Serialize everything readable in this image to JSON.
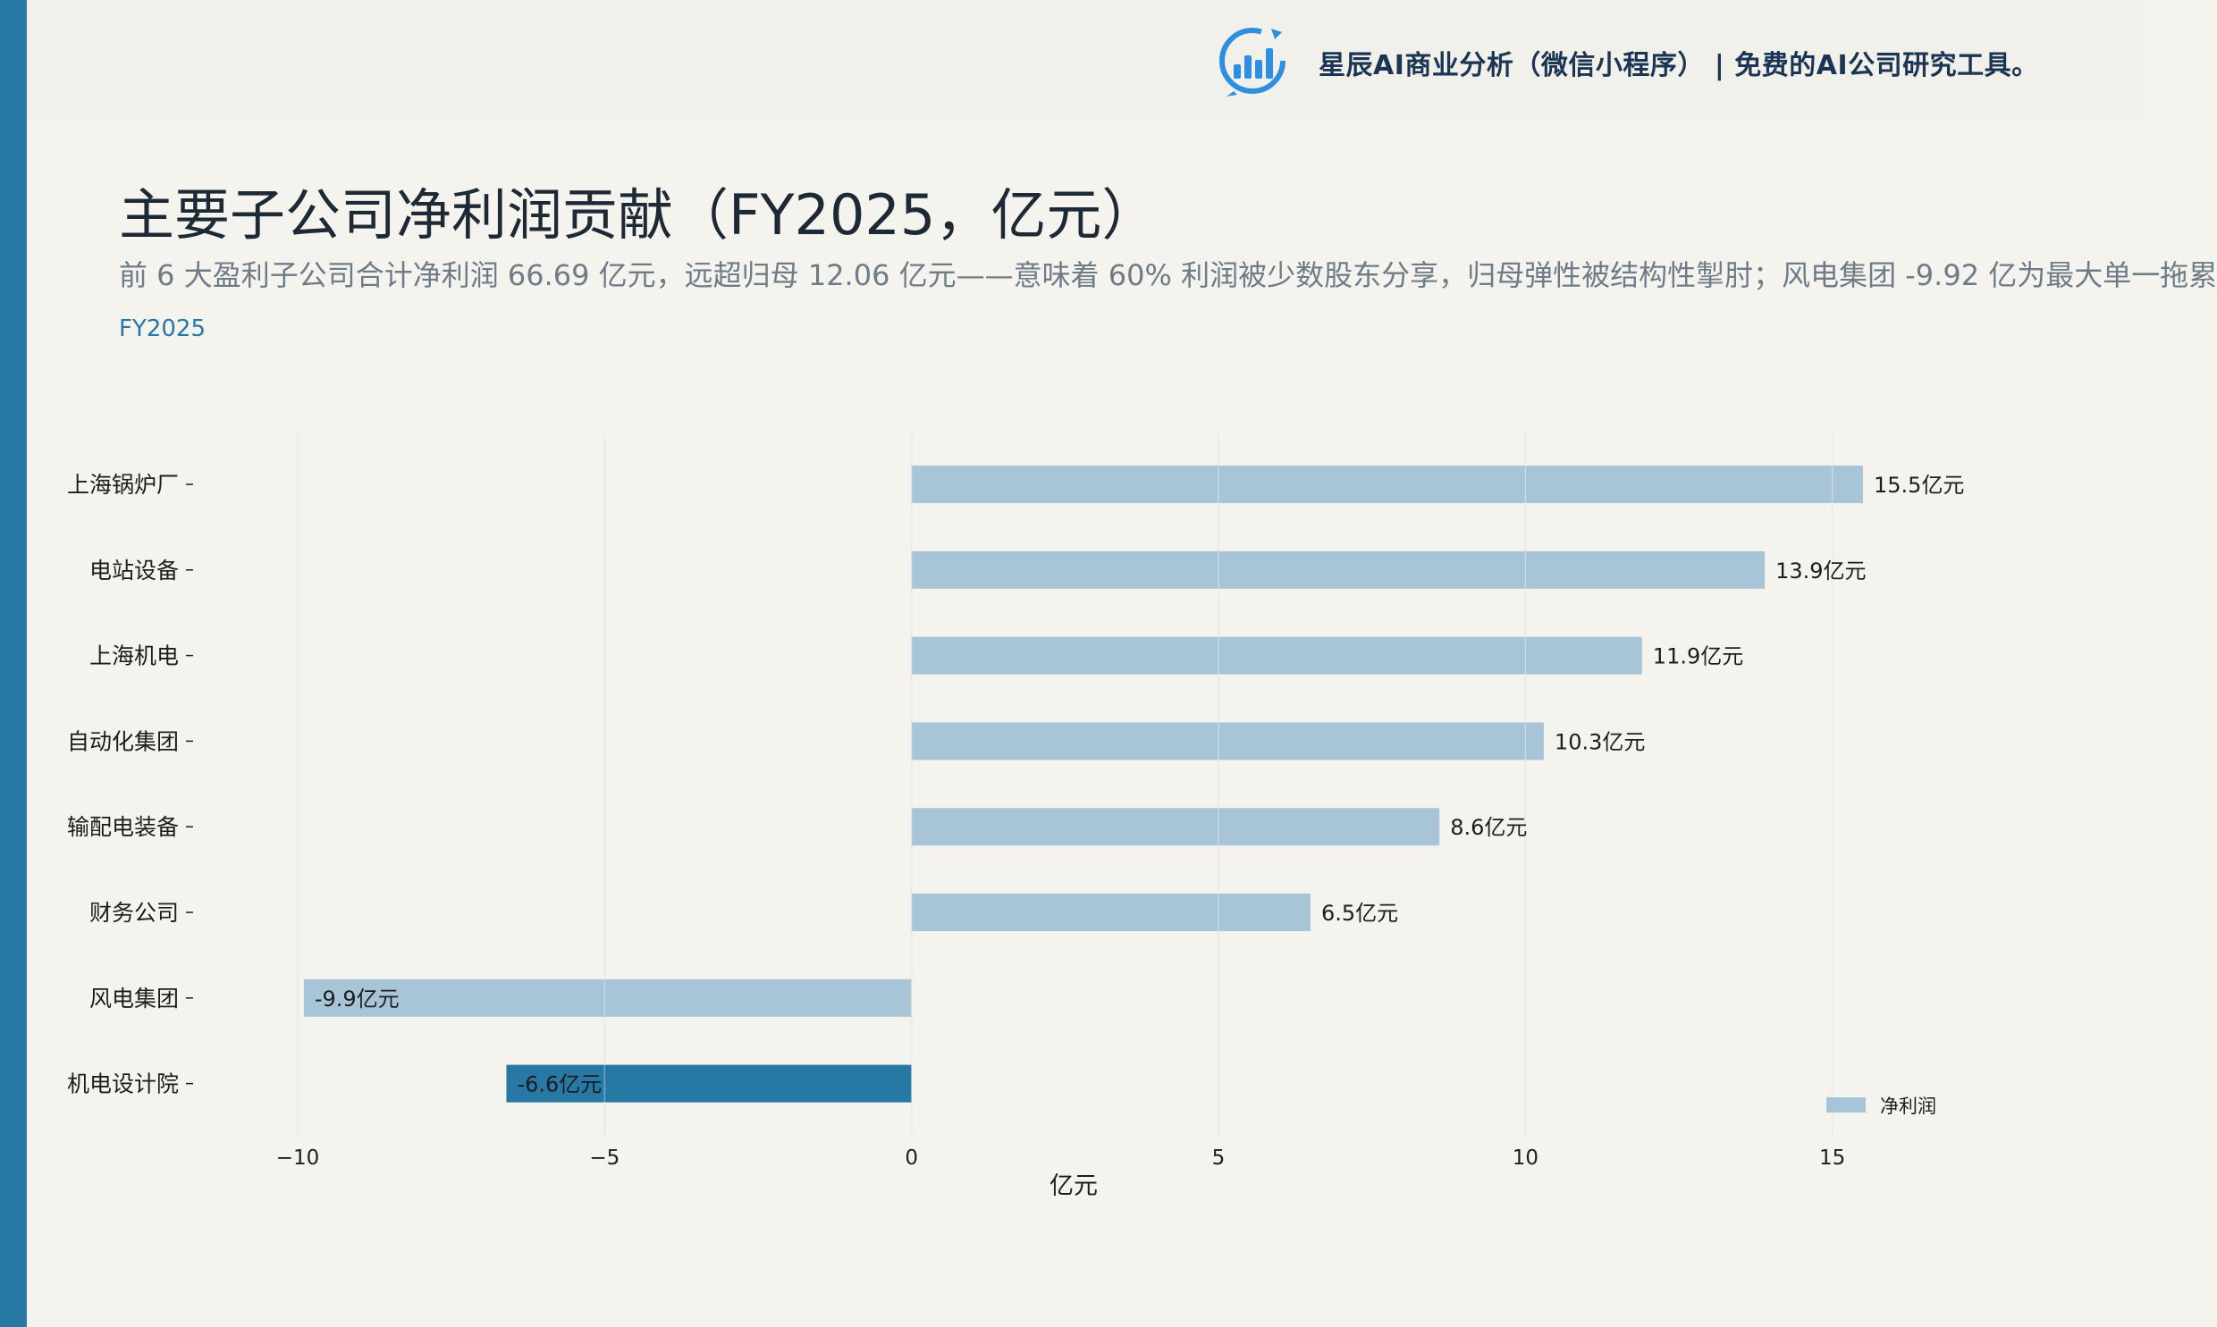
{
  "brand": {
    "text": "星辰AI商业分析（微信小程序）  |  免费的AI公司研究工具。"
  },
  "header": {
    "title": "主要子公司净利润贡献（FY2025，亿元）",
    "subtitle": "前 6 大盈利子公司合计净利润 66.69 亿元，远超归母 12.06 亿元——意味着 60% 利润被少数股东分享，归母弹性被结构性掣肘；风电集团 -9.92 亿为最大单一拖累",
    "period": "FY2025"
  },
  "colors": {
    "accent": "#2878a6",
    "bar": "#a8c5d8",
    "highlight": "#2878a6"
  },
  "chart_data": {
    "type": "bar",
    "orientation": "horizontal",
    "categories": [
      "上海锅炉厂",
      "电站设备",
      "上海机电",
      "自动化集团",
      "输配电装备",
      "财务公司",
      "风电集团",
      "机电设计院"
    ],
    "values": [
      15.5,
      13.9,
      11.9,
      10.3,
      8.6,
      6.5,
      -9.9,
      -6.6
    ],
    "value_labels": [
      "15.5亿元",
      "13.9亿元",
      "11.9亿元",
      "10.3亿元",
      "8.6亿元",
      "6.5亿元",
      "-9.9亿元",
      "-6.6亿元"
    ],
    "highlight_index": 7,
    "xlabel": "亿元",
    "xlim": [
      -11.5,
      18.5
    ],
    "xticks": [
      -10,
      -5,
      0,
      5,
      10,
      15
    ],
    "xtick_labels": [
      "−10",
      "−5",
      "0",
      "5",
      "10",
      "15"
    ],
    "grid": true,
    "legend": {
      "entries": [
        "净利润"
      ],
      "position": "bottom-right"
    }
  }
}
